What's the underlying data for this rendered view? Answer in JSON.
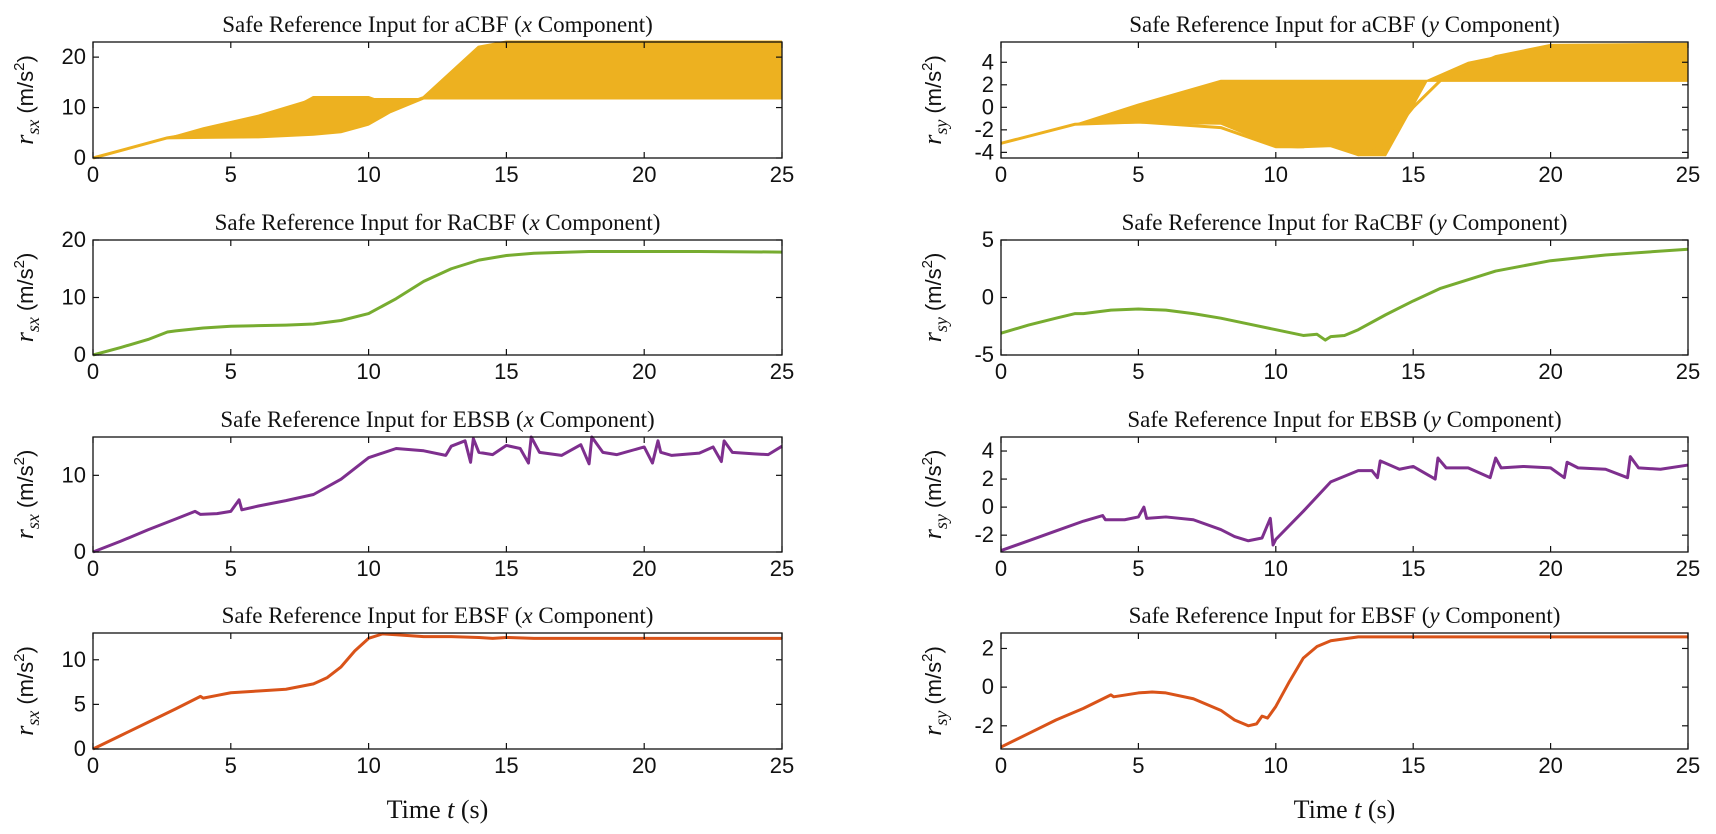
{
  "chart_data": [
    {
      "type": "line",
      "name": "acbf-x",
      "title": "Safe Reference Input for aCBF (x Component)",
      "title_parts": [
        "Safe Reference Input for aCBF (",
        "x",
        " Component)"
      ],
      "ylabel": {
        "sym": "r",
        "sub": "sx",
        "units": "(m/s",
        "exp": "2",
        ")": ")"
      },
      "xlim": [
        0,
        25
      ],
      "ylim": [
        0,
        23
      ],
      "yticks": [
        0,
        10,
        20
      ],
      "xticks": [
        0,
        5,
        10,
        15,
        20,
        25
      ],
      "xticklabels": [
        "0",
        "5",
        "10",
        "15",
        "20",
        "25"
      ],
      "yticklabels": [
        "0",
        "10",
        "20"
      ],
      "color": "#EDB120",
      "series": [
        {
          "name": "aCBF x",
          "x": [
            0,
            2.7,
            5,
            7,
            8,
            9,
            10,
            11,
            12,
            13,
            14,
            15,
            20,
            25
          ],
          "y": [
            0,
            4,
            6,
            9,
            12,
            12,
            12,
            10,
            12,
            17,
            22,
            23,
            23,
            23
          ],
          "band": {
            "x": [
              2.7,
              4,
              6,
              8,
              9,
              10,
              10.8,
              12,
              13,
              14,
              15,
              20,
              25
            ],
            "lo": [
              3.8,
              3.9,
              4,
              4.5,
              5,
              6.5,
              9,
              11.7,
              11.7,
              11.7,
              11.7,
              11.7,
              11.7
            ],
            "hi": [
              4,
              6,
              8.5,
              11.8,
              11.8,
              11.8,
              11.8,
              11.8,
              17,
              22,
              23,
              23,
              23
            ]
          }
        }
      ]
    },
    {
      "type": "line",
      "name": "acbf-y",
      "title": "Safe Reference Input for aCBF (y Component)",
      "title_parts": [
        "Safe Reference Input for aCBF (",
        "y",
        " Component)"
      ],
      "ylabel": {
        "sym": "r",
        "sub": "sy",
        "units": "(m/s",
        "exp": "2",
        ")": ")"
      },
      "xlim": [
        0,
        25
      ],
      "ylim": [
        -4.5,
        5.8
      ],
      "yticks": [
        -4,
        -2,
        0,
        2,
        4
      ],
      "xticks": [
        0,
        5,
        10,
        15,
        20,
        25
      ],
      "xticklabels": [
        "0",
        "5",
        "10",
        "15",
        "20",
        "25"
      ],
      "yticklabels": [
        "-4",
        "-2",
        "0",
        "2",
        "4"
      ],
      "color": "#EDB120",
      "series": [
        {
          "name": "aCBF y",
          "x": [
            0,
            2.7,
            5,
            8,
            10,
            11,
            12,
            13,
            14,
            15,
            16,
            18,
            20,
            25
          ],
          "y": [
            -3.2,
            -1.5,
            -1.3,
            -1.8,
            -3.5,
            -3.5,
            -3,
            -4.2,
            -3,
            0,
            2.4,
            4.5,
            5.5,
            5.6
          ],
          "band": {
            "x": [
              2.7,
              5,
              8,
              10,
              10.8,
              11.9,
              12,
              13,
              14,
              15.5,
              17,
              19,
              20,
              25
            ],
            "lo": [
              -1.5,
              -1.4,
              -1.5,
              -3.5,
              -3.6,
              -3.5,
              -3.5,
              -4.3,
              -4.3,
              2.3,
              2.3,
              2.3,
              2.3,
              2.3
            ],
            "hi": [
              -1.5,
              0.3,
              2.4,
              2.4,
              2.4,
              2.4,
              2.4,
              2.4,
              2.4,
              2.4,
              4,
              5,
              5.5,
              5.6
            ]
          }
        }
      ]
    },
    {
      "type": "line",
      "name": "racbf-x",
      "title": "Safe Reference Input for RaCBF (x Component)",
      "title_parts": [
        "Safe Reference Input for RaCBF (",
        "x",
        " Component)"
      ],
      "ylabel": {
        "sym": "r",
        "sub": "sx",
        "units": "(m/s",
        "exp": "2",
        ")": ")"
      },
      "xlim": [
        0,
        25
      ],
      "ylim": [
        0,
        20
      ],
      "yticks": [
        0,
        10,
        20
      ],
      "xticks": [
        0,
        5,
        10,
        15,
        20,
        25
      ],
      "xticklabels": [
        "0",
        "5",
        "10",
        "15",
        "20",
        "25"
      ],
      "yticklabels": [
        "0",
        "10",
        "20"
      ],
      "color": "#77AC30",
      "series": [
        {
          "name": "RaCBF x",
          "x": [
            0,
            1,
            2,
            2.7,
            3,
            4,
            5,
            6,
            7,
            8,
            9,
            10,
            11,
            12,
            13,
            14,
            15,
            16,
            18,
            20,
            22,
            25
          ],
          "y": [
            0,
            1.3,
            2.7,
            4,
            4.2,
            4.7,
            5,
            5.1,
            5.2,
            5.4,
            6,
            7.2,
            9.8,
            12.8,
            15,
            16.5,
            17.3,
            17.7,
            18,
            18,
            18,
            17.9
          ]
        }
      ]
    },
    {
      "type": "line",
      "name": "racbf-y",
      "title": "Safe Reference Input for RaCBF (y Component)",
      "title_parts": [
        "Safe Reference Input for RaCBF (",
        "y",
        " Component)"
      ],
      "ylabel": {
        "sym": "r",
        "sub": "sy",
        "units": "(m/s",
        "exp": "2",
        ")": ")"
      },
      "xlim": [
        0,
        25
      ],
      "ylim": [
        -5,
        5
      ],
      "yticks": [
        -5,
        0,
        5
      ],
      "xticks": [
        0,
        5,
        10,
        15,
        20,
        25
      ],
      "xticklabels": [
        "0",
        "5",
        "10",
        "15",
        "20",
        "25"
      ],
      "yticklabels": [
        "-5",
        "0",
        "5"
      ],
      "color": "#77AC30",
      "series": [
        {
          "name": "RaCBF y",
          "x": [
            0,
            1,
            2,
            2.7,
            3,
            4,
            5,
            6,
            7,
            8,
            9,
            10,
            11,
            11.5,
            11.8,
            12,
            12.5,
            13,
            14,
            15,
            16,
            18,
            20,
            22,
            25
          ],
          "y": [
            -3.1,
            -2.4,
            -1.8,
            -1.4,
            -1.4,
            -1.1,
            -1,
            -1.1,
            -1.4,
            -1.8,
            -2.3,
            -2.8,
            -3.3,
            -3.2,
            -3.7,
            -3.4,
            -3.3,
            -2.8,
            -1.5,
            -0.3,
            0.8,
            2.3,
            3.2,
            3.7,
            4.2
          ]
        }
      ]
    },
    {
      "type": "line",
      "name": "ebsb-x",
      "title": "Safe Reference Input for EBSB (x Component)",
      "title_parts": [
        "Safe Reference Input for EBSB (",
        "x",
        " Component)"
      ],
      "ylabel": {
        "sym": "r",
        "sub": "sx",
        "units": "(m/s",
        "exp": "2",
        ")": ")"
      },
      "xlim": [
        0,
        25
      ],
      "ylim": [
        0,
        15
      ],
      "yticks": [
        0,
        10
      ],
      "xticks": [
        0,
        5,
        10,
        15,
        20,
        25
      ],
      "xticklabels": [
        "0",
        "5",
        "10",
        "15",
        "20",
        "25"
      ],
      "yticklabels": [
        "0",
        "10"
      ],
      "color": "#7E2F8E",
      "series": [
        {
          "name": "EBSB x",
          "x": [
            0,
            1,
            2,
            3,
            3.7,
            3.9,
            4.5,
            5,
            5.3,
            5.4,
            6,
            7,
            8,
            9,
            10,
            11,
            12,
            12.8,
            13,
            13.5,
            13.7,
            13.8,
            14,
            14.5,
            15,
            15.5,
            15.8,
            15.9,
            16.2,
            17,
            17.7,
            18,
            18.1,
            18.5,
            19,
            20,
            20.3,
            20.5,
            20.6,
            21,
            22,
            22.5,
            22.8,
            22.9,
            23.2,
            24,
            24.5,
            25
          ],
          "y": [
            0,
            1.4,
            2.9,
            4.3,
            5.3,
            4.9,
            5,
            5.3,
            6.8,
            5.5,
            6,
            6.7,
            7.5,
            9.5,
            12.3,
            13.5,
            13.2,
            12.6,
            13.8,
            14.5,
            11.7,
            14.8,
            13,
            12.7,
            13.9,
            13.5,
            11.6,
            15,
            13,
            12.6,
            14,
            11.5,
            15,
            13,
            12.7,
            13.7,
            11.6,
            14.5,
            13,
            12.6,
            12.9,
            13.7,
            11.8,
            14.5,
            13,
            12.8,
            12.7,
            13.8
          ]
        }
      ]
    },
    {
      "type": "line",
      "name": "ebsb-y",
      "title": "Safe Reference Input for EBSB (y Component)",
      "title_parts": [
        "Safe Reference Input for EBSB (",
        "y",
        " Component)"
      ],
      "ylabel": {
        "sym": "r",
        "sub": "sy",
        "units": "(m/s",
        "exp": "2",
        ")": ")"
      },
      "xlim": [
        0,
        25
      ],
      "ylim": [
        -3.2,
        5
      ],
      "yticks": [
        -2,
        0,
        2,
        4
      ],
      "xticks": [
        0,
        5,
        10,
        15,
        20,
        25
      ],
      "xticklabels": [
        "0",
        "5",
        "10",
        "15",
        "20",
        "25"
      ],
      "yticklabels": [
        "-2",
        "0",
        "2",
        "4"
      ],
      "color": "#7E2F8E",
      "series": [
        {
          "name": "EBSB y",
          "x": [
            0,
            1,
            2,
            3,
            3.7,
            3.8,
            4.5,
            5,
            5.2,
            5.3,
            6,
            7,
            8,
            8.5,
            9,
            9.5,
            9.8,
            9.9,
            10,
            11,
            12,
            13,
            13.5,
            13.7,
            13.8,
            14.5,
            15,
            15.8,
            15.9,
            16.2,
            17,
            17.8,
            18,
            18.2,
            19,
            20,
            20.5,
            20.6,
            21,
            22,
            22.8,
            22.9,
            23.2,
            24,
            25
          ],
          "y": [
            -3.1,
            -2.4,
            -1.7,
            -1,
            -0.6,
            -0.9,
            -0.9,
            -0.7,
            0,
            -0.8,
            -0.7,
            -0.9,
            -1.6,
            -2.1,
            -2.4,
            -2.2,
            -0.8,
            -2.7,
            -2.3,
            -0.3,
            1.8,
            2.6,
            2.6,
            2.1,
            3.3,
            2.7,
            2.9,
            2,
            3.5,
            2.8,
            2.8,
            2.1,
            3.5,
            2.8,
            2.9,
            2.8,
            2.1,
            3.2,
            2.8,
            2.7,
            2.1,
            3.6,
            2.8,
            2.7,
            3
          ]
        }
      ]
    },
    {
      "type": "line",
      "name": "ebsf-x",
      "title": "Safe Reference Input for EBSF (x Component)",
      "title_parts": [
        "Safe Reference Input for EBSF (",
        "x",
        " Component)"
      ],
      "ylabel": {
        "sym": "r",
        "sub": "sx",
        "units": "(m/s",
        "exp": "2",
        ")": ")"
      },
      "xlim": [
        0,
        25
      ],
      "ylim": [
        0,
        13
      ],
      "yticks": [
        0,
        5,
        10
      ],
      "xticks": [
        0,
        5,
        10,
        15,
        20,
        25
      ],
      "xticklabels": [
        "0",
        "5",
        "10",
        "15",
        "20",
        "25"
      ],
      "yticklabels": [
        "0",
        "5",
        "10"
      ],
      "color": "#D95319",
      "series": [
        {
          "name": "EBSF x",
          "x": [
            0,
            1,
            2,
            3,
            3.9,
            4,
            4.5,
            5,
            6,
            7,
            8,
            8.5,
            9,
            9.5,
            10,
            10.5,
            11,
            12,
            13,
            14,
            14.5,
            15,
            16,
            18,
            20,
            22,
            25
          ],
          "y": [
            0,
            1.5,
            3,
            4.5,
            5.9,
            5.7,
            6,
            6.3,
            6.5,
            6.7,
            7.3,
            8,
            9.2,
            11,
            12.4,
            12.9,
            12.8,
            12.6,
            12.6,
            12.5,
            12.4,
            12.5,
            12.4,
            12.4,
            12.4,
            12.4,
            12.4
          ]
        }
      ]
    },
    {
      "type": "line",
      "name": "ebsf-y",
      "title": "Safe Reference Input for EBSF (y Component)",
      "title_parts": [
        "Safe Reference Input for EBSF (",
        "y",
        " Component)"
      ],
      "ylabel": {
        "sym": "r",
        "sub": "sy",
        "units": "(m/s",
        "exp": "2",
        ")": ")"
      },
      "xlim": [
        0,
        25
      ],
      "ylim": [
        -3.2,
        2.8
      ],
      "yticks": [
        -2,
        0,
        2
      ],
      "xticks": [
        0,
        5,
        10,
        15,
        20,
        25
      ],
      "xticklabels": [
        "0",
        "5",
        "10",
        "15",
        "20",
        "25"
      ],
      "yticklabels": [
        "-2",
        "0",
        "2"
      ],
      "color": "#D95319",
      "series": [
        {
          "name": "EBSF y",
          "x": [
            0,
            1,
            2,
            3,
            4,
            4.1,
            5,
            5.5,
            6,
            7,
            8,
            8.5,
            9,
            9.3,
            9.5,
            9.7,
            10,
            10.5,
            11,
            11.5,
            12,
            13,
            14,
            15,
            18,
            20,
            25
          ],
          "y": [
            -3.1,
            -2.4,
            -1.7,
            -1.1,
            -0.4,
            -0.5,
            -0.3,
            -0.25,
            -0.3,
            -0.6,
            -1.2,
            -1.7,
            -2,
            -1.9,
            -1.5,
            -1.6,
            -1,
            0.3,
            1.5,
            2.1,
            2.4,
            2.6,
            2.6,
            2.6,
            2.6,
            2.6,
            2.6
          ]
        }
      ]
    }
  ],
  "xlabel": {
    "prefix": "Time ",
    "sym": "t",
    "suffix": " (s)"
  }
}
